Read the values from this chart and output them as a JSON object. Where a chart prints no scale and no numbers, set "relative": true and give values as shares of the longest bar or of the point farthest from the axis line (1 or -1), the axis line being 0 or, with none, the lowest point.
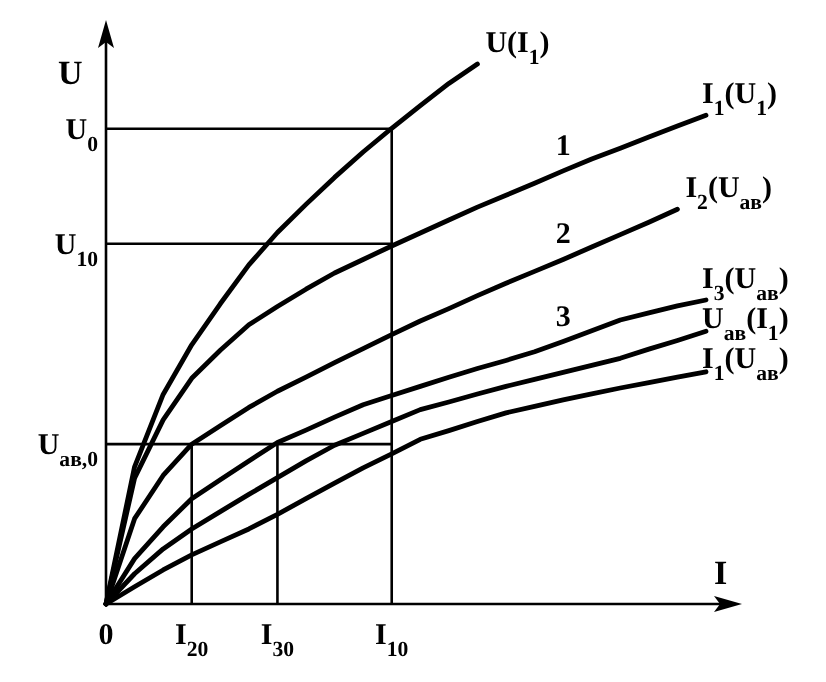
{
  "chart_data": {
    "type": "line",
    "relative": true,
    "xlabel": "I",
    "ylabel": "U",
    "marker": "none",
    "line_style": "solid",
    "categories": [
      "0",
      null,
      null,
      "I$_{20}$",
      null,
      null,
      "I$_{30}$",
      null,
      null,
      null,
      "I$_{10}$",
      null,
      null,
      null,
      null,
      null,
      null,
      null,
      null,
      null,
      null,
      null
    ],
    "series": [
      {
        "name": "U(I$_{1}$)",
        "color": "#000000",
        "values": [
          0,
          0.254,
          0.388,
          0.48,
          0.556,
          0.628,
          0.688,
          0.74,
          0.79,
          0.837,
          0.881,
          0.923,
          0.964,
          1.0,
          null,
          null,
          null,
          null,
          null,
          null,
          null,
          null
        ]
      },
      {
        "name": "I$_{1}$(U$_{1}$)",
        "color": "#000000",
        "values": [
          0,
          0.233,
          0.341,
          0.418,
          0.47,
          0.517,
          0.551,
          0.583,
          0.613,
          0.638,
          0.663,
          0.687,
          0.711,
          0.735,
          0.757,
          0.779,
          0.802,
          0.824,
          0.844,
          0.865,
          0.885,
          0.905
        ]
      },
      {
        "name": "I$_{2}$(U$_{ав}$)",
        "color": "#000000",
        "values": [
          0,
          0.158,
          0.238,
          0.296,
          0.33,
          0.364,
          0.394,
          0.42,
          0.447,
          0.473,
          0.499,
          0.524,
          0.547,
          0.571,
          0.594,
          0.616,
          0.638,
          0.661,
          0.684,
          0.707,
          0.731,
          null
        ]
      },
      {
        "name": "I$_{3}$(U$_{ав}$)",
        "color": "#000000",
        "values": [
          0,
          0.084,
          0.143,
          0.195,
          0.23,
          0.265,
          0.299,
          0.322,
          0.346,
          0.369,
          0.386,
          0.403,
          0.42,
          0.436,
          0.451,
          0.467,
          0.486,
          0.506,
          0.526,
          0.539,
          0.552,
          0.563
        ]
      },
      {
        "name": "U$_{ав}$(I$_{1}$)",
        "color": "#000000",
        "values": [
          0,
          0.056,
          0.102,
          0.139,
          0.171,
          0.203,
          0.234,
          0.265,
          0.294,
          0.316,
          0.338,
          0.36,
          0.374,
          0.389,
          0.403,
          0.416,
          0.429,
          0.442,
          0.455,
          0.472,
          0.488,
          0.505
        ]
      },
      {
        "name": "I$_{1}$(U$_{ав}$)",
        "color": "#000000",
        "values": [
          0,
          0.032,
          0.063,
          0.091,
          0.115,
          0.139,
          0.166,
          0.195,
          0.224,
          0.252,
          0.278,
          0.305,
          0.321,
          0.338,
          0.354,
          0.366,
          0.378,
          0.389,
          0.4,
          0.41,
          0.42,
          0.43
        ]
      }
    ],
    "ref_lines": [
      {
        "axis": "y",
        "value": 0.88,
        "label": "U$_{0}$",
        "color": "#000000"
      },
      {
        "axis": "y",
        "value": 0.667,
        "label": "U$_{10}$",
        "color": "#000000"
      },
      {
        "axis": "y",
        "value": 0.296,
        "label": "U$_{ав,0}$",
        "color": "#000000"
      },
      {
        "axis": "x",
        "value": "I$_{20}$",
        "color": "#000000"
      },
      {
        "axis": "x",
        "value": "I$_{30}$",
        "color": "#000000"
      },
      {
        "axis": "x",
        "value": "I$_{10}$",
        "color": "#000000"
      }
    ],
    "annotations": [
      "1",
      "2",
      "3"
    ]
  }
}
